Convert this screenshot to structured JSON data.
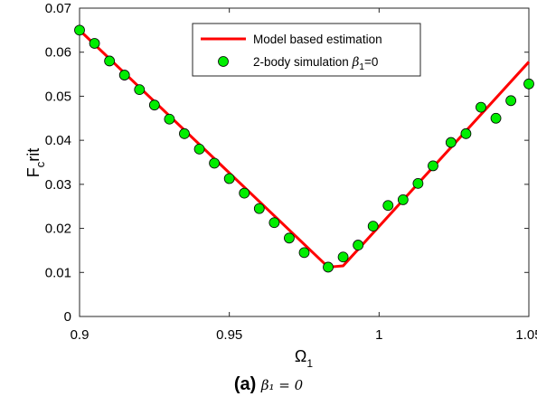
{
  "chart_data": {
    "type": "line",
    "xlabel": "Ω",
    "xlabel_sub": "1",
    "ylabel": "F",
    "ylabel_sub": "c",
    "ylabel_suffix": "rit",
    "xlim": [
      0.9,
      1.05
    ],
    "ylim": [
      0,
      0.07
    ],
    "xticks": [
      0.9,
      0.95,
      1,
      1.05
    ],
    "xtick_labels": [
      "0.9",
      "0.95",
      "1",
      "1.05"
    ],
    "yticks": [
      0,
      0.01,
      0.02,
      0.03,
      0.04,
      0.05,
      0.06,
      0.07
    ],
    "ytick_labels": [
      "0",
      "0.01",
      "0.02",
      "0.03",
      "0.04",
      "0.05",
      "0.06",
      "0.07"
    ],
    "grid": false,
    "legend_position": "top-right",
    "series": [
      {
        "name": "Model based estimation",
        "kind": "line",
        "color": "#ff0000",
        "x": [
          0.9,
          0.983,
          0.988,
          1.05
        ],
        "y": [
          0.065,
          0.0112,
          0.0115,
          0.0578
        ]
      },
      {
        "name": "2-body simulation β₁=0",
        "legend_parts": [
          "2-body simulation ",
          "β",
          "1",
          "=0"
        ],
        "kind": "scatter",
        "color": "#00ee00",
        "x": [
          0.9,
          0.905,
          0.91,
          0.915,
          0.92,
          0.925,
          0.93,
          0.935,
          0.94,
          0.945,
          0.95,
          0.955,
          0.96,
          0.965,
          0.97,
          0.975,
          0.983,
          0.988,
          0.993,
          0.998,
          1.003,
          1.008,
          1.013,
          1.018,
          1.024,
          1.029,
          1.034,
          1.039,
          1.044,
          1.05
        ],
        "y": [
          0.065,
          0.062,
          0.058,
          0.0548,
          0.0515,
          0.048,
          0.0448,
          0.0415,
          0.038,
          0.0348,
          0.0313,
          0.028,
          0.0245,
          0.0213,
          0.0178,
          0.0145,
          0.0112,
          0.0135,
          0.0162,
          0.0205,
          0.0252,
          0.0265,
          0.0302,
          0.0342,
          0.0395,
          0.0415,
          0.0475,
          0.045,
          0.049,
          0.0528
        ]
      }
    ]
  },
  "caption": {
    "label": "(a)",
    "text": "β₁ = 0"
  }
}
